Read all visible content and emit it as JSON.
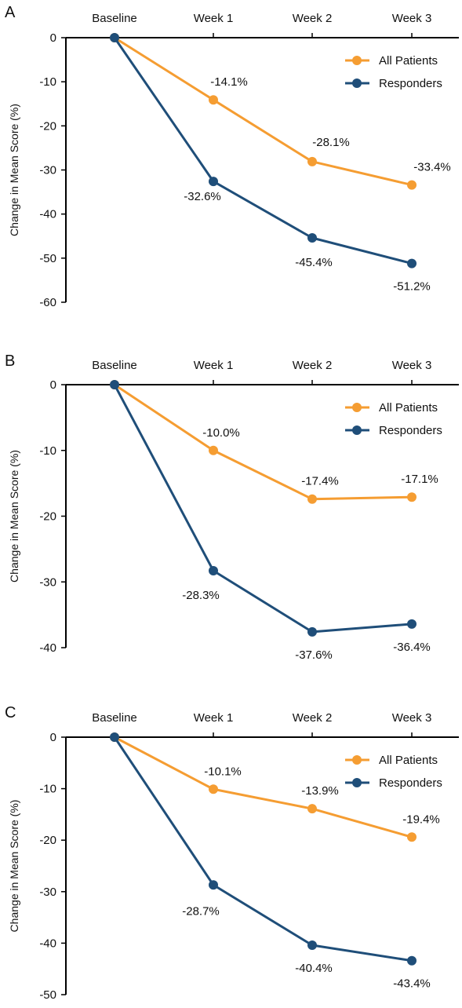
{
  "colors": {
    "all_patients": "#F59D32",
    "responders": "#1F4E79",
    "axis": "#000000"
  },
  "chart_data": [
    {
      "type": "line",
      "panel_label": "A",
      "categories": [
        "Baseline",
        "Week 1",
        "Week 2",
        "Week 3"
      ],
      "ylabel": "Change in Mean Score (%)",
      "ylim": [
        -60,
        0
      ],
      "yticks": [
        0,
        -10,
        -20,
        -30,
        -40,
        -50,
        -60
      ],
      "ytick_labels": [
        "0",
        "-10",
        "-20",
        "-30",
        "-40",
        "-50",
        "-60"
      ],
      "legend_position": "top-right",
      "series": [
        {
          "name": "All Patients",
          "values": [
            0,
            -14.1,
            -28.1,
            -33.4
          ],
          "labels": [
            "",
            "-14.1%",
            "-28.1%",
            "-33.4%"
          ]
        },
        {
          "name": "Responders",
          "values": [
            0,
            -32.6,
            -45.4,
            -51.2
          ],
          "labels": [
            "",
            "-32.6%",
            "-45.4%",
            "-51.2%"
          ]
        }
      ]
    },
    {
      "type": "line",
      "panel_label": "B",
      "categories": [
        "Baseline",
        "Week 1",
        "Week 2",
        "Week 3"
      ],
      "ylabel": "Change in Mean Score (%)",
      "ylim": [
        -40,
        0
      ],
      "yticks": [
        0,
        -10,
        -20,
        -30,
        -40
      ],
      "ytick_labels": [
        "0",
        "-10",
        "-20",
        "-30",
        "-40"
      ],
      "legend_position": "top-right",
      "series": [
        {
          "name": "All Patients",
          "values": [
            0,
            -10.0,
            -17.4,
            -17.1
          ],
          "labels": [
            "",
            "-10.0%",
            "-17.4%",
            "-17.1%"
          ]
        },
        {
          "name": "Responders",
          "values": [
            0,
            -28.3,
            -37.6,
            -36.4
          ],
          "labels": [
            "",
            "-28.3%",
            "-37.6%",
            "-36.4%"
          ]
        }
      ]
    },
    {
      "type": "line",
      "panel_label": "C",
      "categories": [
        "Baseline",
        "Week 1",
        "Week 2",
        "Week 3"
      ],
      "ylabel": "Change in Mean Score (%)",
      "ylim": [
        -50,
        0
      ],
      "yticks": [
        0,
        -10,
        -20,
        -30,
        -40,
        -50
      ],
      "ytick_labels": [
        "0",
        "-10",
        "-20",
        "-30",
        "-40",
        "-50"
      ],
      "legend_position": "top-right",
      "series": [
        {
          "name": "All Patients",
          "values": [
            0,
            -10.1,
            -13.9,
            -19.4
          ],
          "labels": [
            "",
            "-10.1%",
            "-13.9%",
            "-19.4%"
          ]
        },
        {
          "name": "Responders",
          "values": [
            0,
            -28.7,
            -40.4,
            -43.4
          ],
          "labels": [
            "",
            "-28.7%",
            "-40.4%",
            "-43.4%"
          ]
        }
      ]
    }
  ]
}
